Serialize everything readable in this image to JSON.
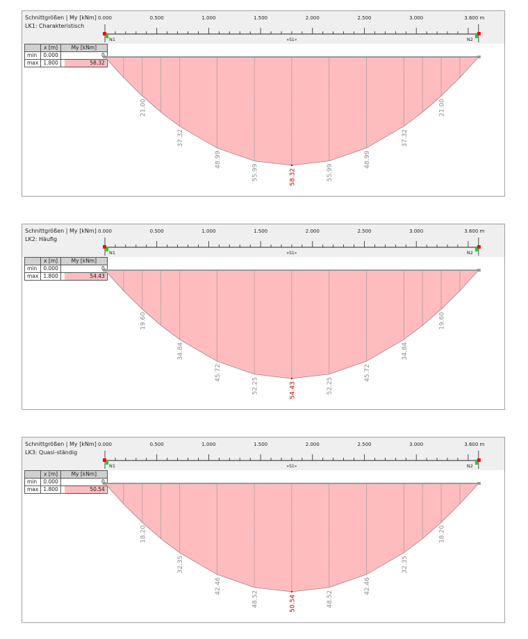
{
  "ruler": {
    "unit": "m",
    "length": 3.6,
    "ticks": [
      "0.000",
      "0.500",
      "1.000",
      "1.500",
      "2.000",
      "2.500",
      "3.000",
      "3.600 m"
    ],
    "tick_values": [
      0,
      0.5,
      1.0,
      1.5,
      2.0,
      2.5,
      3.0,
      3.6
    ],
    "node_start": "N1",
    "node_end": "N2",
    "member": "»S1»"
  },
  "colors": {
    "fill": "#ffbcbf",
    "outline": "#8a8a8a",
    "label": "#8c8c8c",
    "max_label": "#cc0000",
    "node_support": "#ff0000",
    "node_marker": "#00dd00"
  },
  "table_headers": [
    "",
    "x [m]",
    "My [kNm]"
  ],
  "panels": [
    {
      "title": "Schnittgrößen | My [kNm]",
      "case": "LK1: Charakteristisch",
      "min": {
        "label": "min",
        "x": "0.000",
        "value": "0"
      },
      "max": {
        "label": "max",
        "x": "1.800",
        "value": "58.32"
      },
      "max_value": 58.32,
      "labels": [
        {
          "x": 0.36,
          "v": "21.00"
        },
        {
          "x": 0.72,
          "v": "37.32"
        },
        {
          "x": 1.08,
          "v": "48.99"
        },
        {
          "x": 1.44,
          "v": "55.99"
        },
        {
          "x": 1.8,
          "v": "58.32"
        },
        {
          "x": 2.16,
          "v": "55.99"
        },
        {
          "x": 2.52,
          "v": "48.99"
        },
        {
          "x": 2.88,
          "v": "37.32"
        },
        {
          "x": 3.24,
          "v": "21.00"
        }
      ]
    },
    {
      "title": "Schnittgrößen | My [kNm]",
      "case": "LK2: Häufig",
      "min": {
        "label": "min",
        "x": "0.000",
        "value": "0"
      },
      "max": {
        "label": "max",
        "x": "1.800",
        "value": "54.43"
      },
      "max_value": 54.43,
      "labels": [
        {
          "x": 0.36,
          "v": "19.60"
        },
        {
          "x": 0.72,
          "v": "34.84"
        },
        {
          "x": 1.08,
          "v": "45.72"
        },
        {
          "x": 1.44,
          "v": "52.25"
        },
        {
          "x": 1.8,
          "v": "54.43"
        },
        {
          "x": 2.16,
          "v": "52.25"
        },
        {
          "x": 2.52,
          "v": "45.72"
        },
        {
          "x": 2.88,
          "v": "34.84"
        },
        {
          "x": 3.24,
          "v": "19.60"
        }
      ]
    },
    {
      "title": "Schnittgrößen | My [kNm]",
      "case": "LK3: Quasi-ständig",
      "min": {
        "label": "min",
        "x": "0.000",
        "value": "0"
      },
      "max": {
        "label": "max",
        "x": "1.800",
        "value": "50.54"
      },
      "max_value": 50.54,
      "labels": [
        {
          "x": 0.36,
          "v": "18.20"
        },
        {
          "x": 0.72,
          "v": "32.35"
        },
        {
          "x": 1.08,
          "v": "42.46"
        },
        {
          "x": 1.44,
          "v": "48.52"
        },
        {
          "x": 1.8,
          "v": "50.54"
        },
        {
          "x": 2.16,
          "v": "48.52"
        },
        {
          "x": 2.52,
          "v": "42.46"
        },
        {
          "x": 2.88,
          "v": "32.35"
        },
        {
          "x": 3.24,
          "v": "18.20"
        }
      ]
    }
  ]
}
